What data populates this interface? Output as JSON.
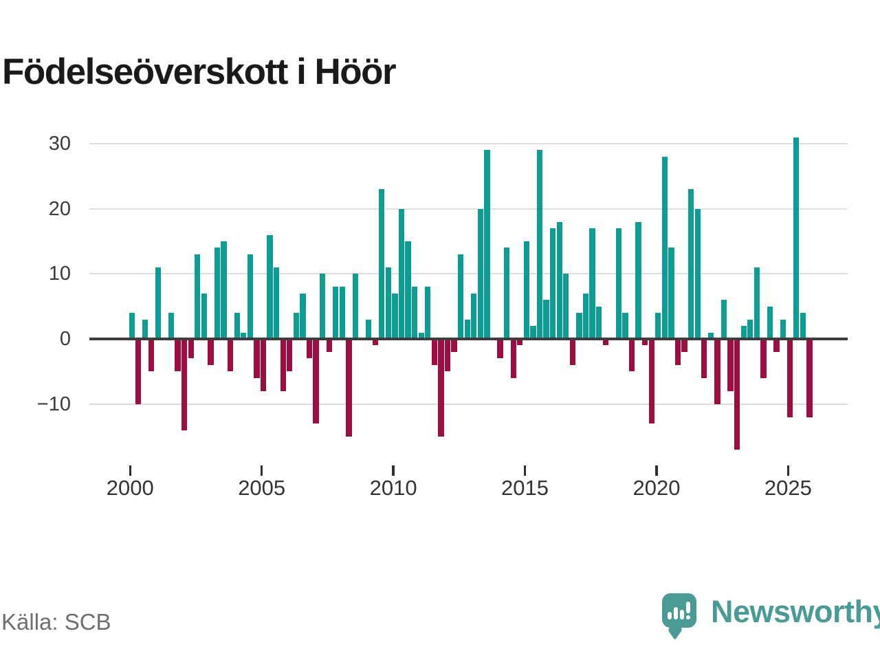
{
  "title": "Födelseöverskott i Höör",
  "source_note": "Källa: SCB",
  "brand": {
    "wordmark": "Newsworthy",
    "logo_icon": "bar-chart-exclamation-speech-bubble"
  },
  "colors": {
    "positive_bar": "#0c9e94",
    "negative_bar": "#9e0c42",
    "gridline": "#dedede",
    "zero_axis": "#3d3d3d",
    "axis_text": "#3a3a3a",
    "title_text": "#1a1a1a",
    "muted_text": "#6e6e6e",
    "brand_teal": "#4a9a96"
  },
  "chart_data": {
    "type": "bar",
    "title": "Födelseöverskott i Höör",
    "frequency": "quarterly",
    "start_year": 2000,
    "x_tick_years": [
      2000,
      2005,
      2010,
      2015,
      2020,
      2025
    ],
    "x_tick_labels": [
      "2000",
      "2005",
      "2010",
      "2015",
      "2020",
      "2025"
    ],
    "y_gridlines": [
      30,
      20,
      10,
      0,
      -10
    ],
    "y_tick_labels": [
      "30",
      "20",
      "10",
      "0",
      "−10"
    ],
    "ylim": [
      -18,
      33
    ],
    "grid": "horizontal-only",
    "legend": "none",
    "series": [
      {
        "name": "Födelseöverskott",
        "values_by_year": [
          {
            "year": 2000,
            "values": [
              4,
              -10,
              3,
              -5
            ]
          },
          {
            "year": 2001,
            "values": [
              11,
              0,
              4,
              -5
            ]
          },
          {
            "year": 2002,
            "values": [
              -14,
              -3,
              13,
              7
            ]
          },
          {
            "year": 2003,
            "values": [
              -4,
              14,
              15,
              -5
            ]
          },
          {
            "year": 2004,
            "values": [
              4,
              1,
              13,
              -6
            ]
          },
          {
            "year": 2005,
            "values": [
              -8,
              16,
              11,
              -8
            ]
          },
          {
            "year": 2006,
            "values": [
              -5,
              4,
              7,
              -3
            ]
          },
          {
            "year": 2007,
            "values": [
              -13,
              10,
              -2,
              8
            ]
          },
          {
            "year": 2008,
            "values": [
              8,
              -15,
              10,
              0
            ]
          },
          {
            "year": 2009,
            "values": [
              3,
              -1,
              23,
              11
            ]
          },
          {
            "year": 2010,
            "values": [
              7,
              20,
              15,
              8
            ]
          },
          {
            "year": 2011,
            "values": [
              1,
              8,
              -4,
              -15
            ]
          },
          {
            "year": 2012,
            "values": [
              -5,
              -2,
              13,
              3
            ]
          },
          {
            "year": 2013,
            "values": [
              7,
              20,
              29,
              0
            ]
          },
          {
            "year": 2014,
            "values": [
              -3,
              14,
              -6,
              -1
            ]
          },
          {
            "year": 2015,
            "values": [
              15,
              2,
              29,
              6
            ]
          },
          {
            "year": 2016,
            "values": [
              17,
              18,
              10,
              -4
            ]
          },
          {
            "year": 2017,
            "values": [
              4,
              7,
              17,
              5
            ]
          },
          {
            "year": 2018,
            "values": [
              -1,
              0,
              17,
              4
            ]
          },
          {
            "year": 2019,
            "values": [
              -5,
              18,
              -1,
              -13
            ]
          },
          {
            "year": 2020,
            "values": [
              4,
              28,
              14,
              -4
            ]
          },
          {
            "year": 2021,
            "values": [
              -2,
              23,
              20,
              -6
            ]
          },
          {
            "year": 2022,
            "values": [
              1,
              -10,
              6,
              -8
            ]
          },
          {
            "year": 2023,
            "values": [
              -17,
              2,
              3,
              11
            ]
          },
          {
            "year": 2024,
            "values": [
              -6,
              5,
              -2,
              3
            ]
          },
          {
            "year": 2025,
            "values": [
              -12,
              31,
              4,
              -12
            ]
          }
        ]
      }
    ]
  }
}
